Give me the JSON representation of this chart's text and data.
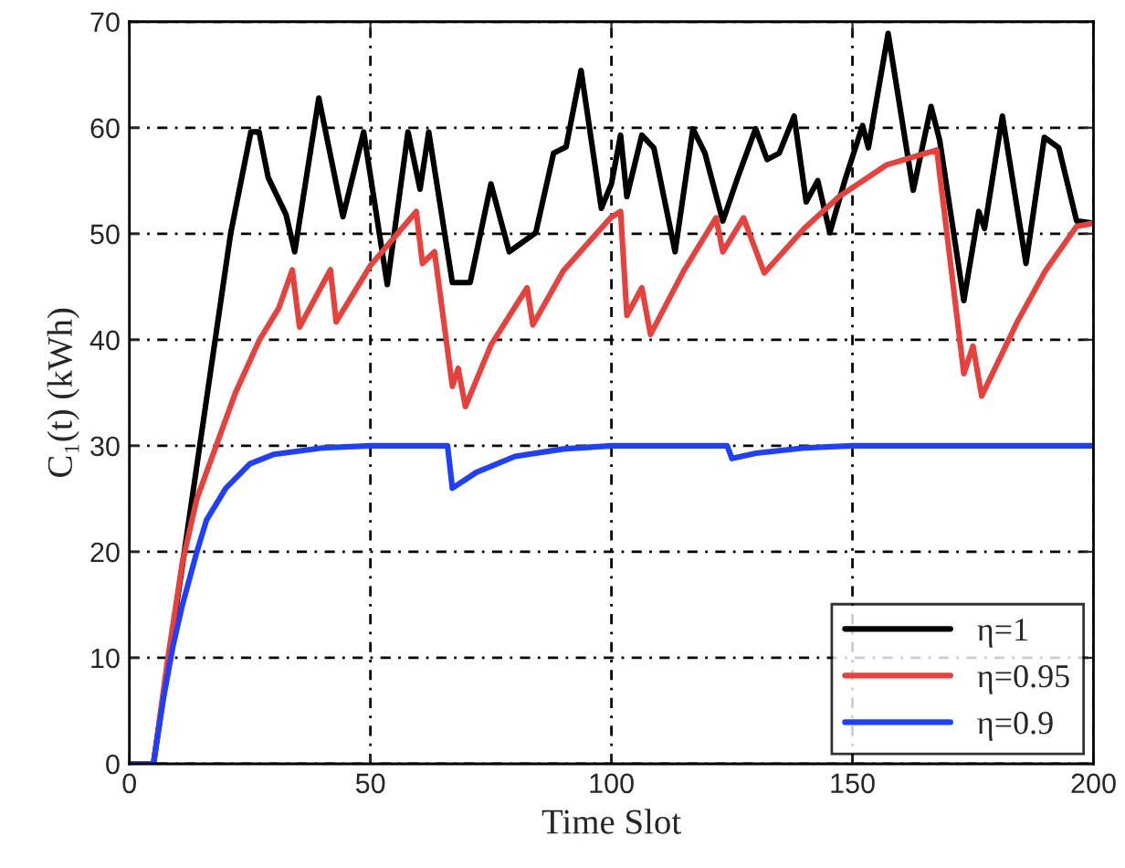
{
  "chart_data": {
    "type": "line",
    "xlabel": "Time Slot",
    "ylabel": "C₁(t) (kWh)",
    "xlim": [
      0,
      200
    ],
    "ylim": [
      0,
      70
    ],
    "xticks": [
      0,
      50,
      100,
      150,
      200
    ],
    "yticks": [
      0,
      10,
      20,
      30,
      40,
      50,
      60,
      70
    ],
    "grid": true,
    "legend": "bottom right",
    "marker": "none",
    "line_style": "solid",
    "series": [
      {
        "name": "η=1",
        "color": "#000000",
        "x": [
          0,
          5,
          21,
          25.2,
          26.9,
          28.8,
          32.5,
          34.3,
          39.3,
          44.3,
          48.6,
          53.5,
          57.8,
          60.3,
          62.1,
          67,
          70.7,
          75,
          78.8,
          84.3,
          88,
          90.6,
          93.7,
          97.9,
          100,
          101.9,
          103.2,
          106.3,
          108.8,
          113.2,
          116.9,
          119.4,
          123.1,
          126.2,
          129.9,
          132.3,
          134.8,
          137.9,
          140.4,
          142.8,
          145.3,
          148.4,
          152.1,
          153.3,
          157.4,
          162.6,
          166.3,
          168.1,
          173.1,
          176.2,
          177.4,
          181.1,
          186,
          189.8,
          192.8,
          196.5,
          200
        ],
        "values": [
          0,
          0,
          50,
          59.6,
          59.6,
          55.3,
          51.8,
          48.3,
          62.8,
          51.6,
          59.6,
          45.2,
          59.6,
          54.2,
          59.6,
          45.4,
          45.4,
          54.7,
          48.3,
          50.1,
          57.6,
          58.2,
          65.4,
          52.4,
          54.7,
          59.3,
          53.5,
          59.3,
          58.1,
          48.3,
          59.9,
          57.6,
          51.2,
          55.3,
          59.9,
          57,
          57.6,
          61.1,
          53,
          55,
          50.1,
          55,
          60.2,
          58.1,
          68.9,
          54.1,
          62,
          58.8,
          43.7,
          52.1,
          50.5,
          61.1,
          47.2,
          59.1,
          58.1,
          51.2,
          51
        ]
      },
      {
        "name": "η=0.95",
        "color": "#e8413c",
        "x": [
          0,
          5,
          8,
          11,
          14,
          18,
          22,
          27,
          31,
          33.8,
          35.3,
          41.7,
          42.9,
          50,
          59.5,
          60.8,
          63.3,
          67,
          68.2,
          69.7,
          75,
          82.5,
          83.7,
          90,
          99.8,
          101.9,
          103.2,
          106.3,
          108.1,
          115,
          121.7,
          123.1,
          127.4,
          131.7,
          140,
          147.2,
          157.1,
          167.5,
          173.1,
          175,
          176.8,
          184.2,
          190,
          196.5,
          200
        ],
        "values": [
          0,
          0,
          10,
          19,
          25,
          30,
          35,
          40,
          43,
          46.6,
          41.2,
          46.6,
          41.7,
          47,
          52.1,
          47.2,
          48.3,
          35.6,
          37.3,
          33.7,
          39.5,
          44.9,
          41.4,
          46.5,
          51.5,
          52.1,
          42.3,
          44.9,
          40.5,
          46.5,
          51.5,
          48.3,
          51.5,
          46.3,
          50.5,
          53.5,
          56.5,
          57.9,
          36.8,
          39.4,
          34.7,
          41.7,
          46.5,
          50.7,
          51
        ]
      },
      {
        "name": "η=0.9",
        "color": "#1f3fff",
        "x": [
          0,
          5,
          7,
          9,
          11,
          14,
          16,
          20,
          25,
          30,
          40,
          50,
          66,
          67,
          72,
          80,
          90,
          100,
          124,
          125,
          130,
          140,
          150,
          200
        ],
        "values": [
          0,
          0,
          6,
          11,
          15,
          20,
          23,
          26,
          28.3,
          29.2,
          29.8,
          30,
          30,
          26,
          27.5,
          29,
          29.7,
          30,
          30,
          28.8,
          29.3,
          29.8,
          30,
          30
        ]
      }
    ]
  }
}
